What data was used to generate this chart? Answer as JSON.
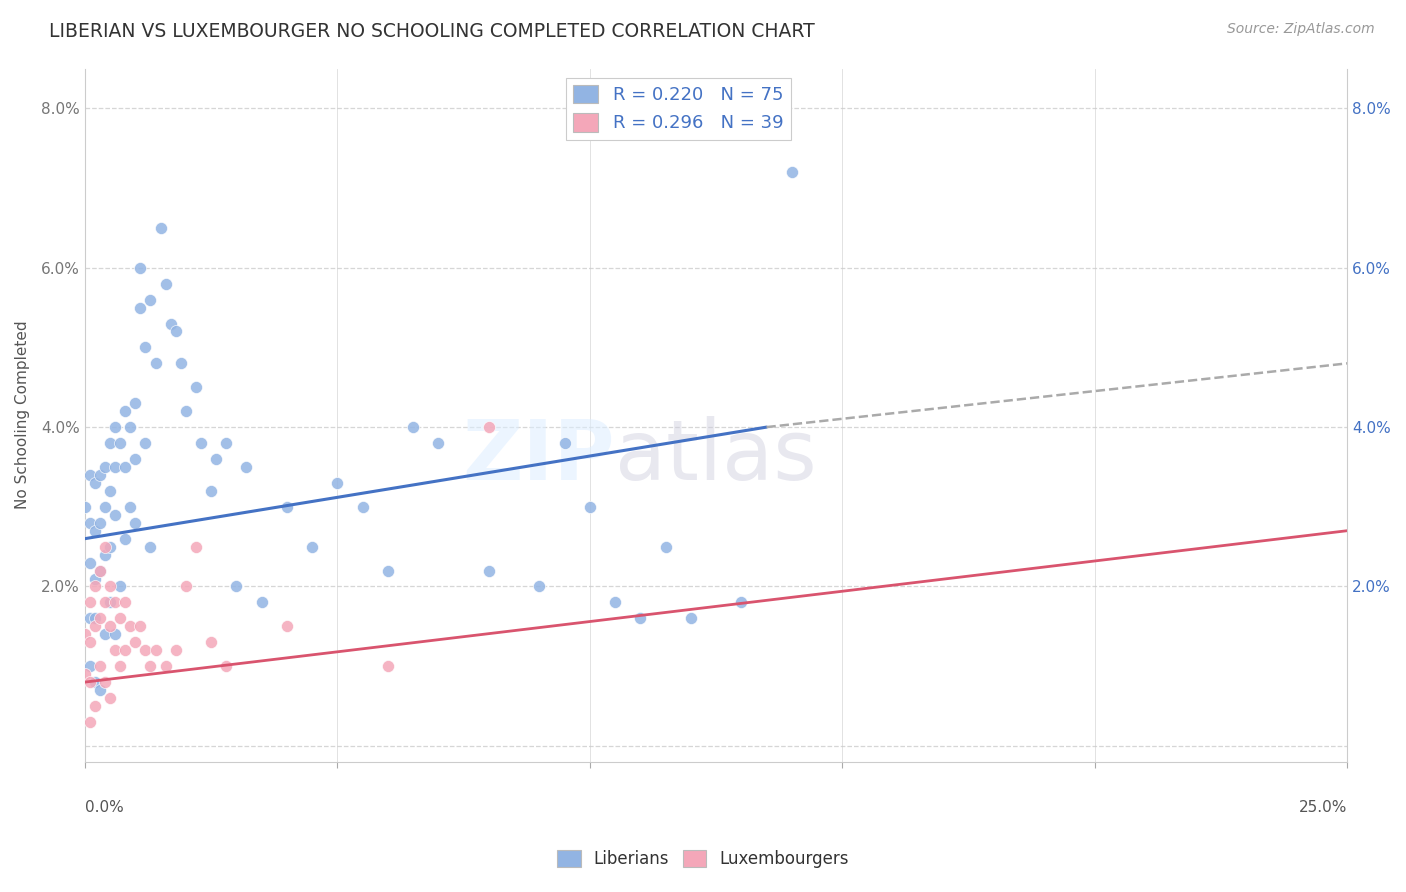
{
  "title": "LIBERIAN VS LUXEMBOURGER NO SCHOOLING COMPLETED CORRELATION CHART",
  "source": "Source: ZipAtlas.com",
  "ylabel": "No Schooling Completed",
  "xlim": [
    0.0,
    0.25
  ],
  "ylim": [
    -0.002,
    0.085
  ],
  "yticks": [
    0.0,
    0.02,
    0.04,
    0.06,
    0.08
  ],
  "ytick_labels_left": [
    "",
    "2.0%",
    "4.0%",
    "6.0%",
    "8.0%"
  ],
  "ytick_labels_right": [
    "",
    "2.0%",
    "4.0%",
    "6.0%",
    "8.0%"
  ],
  "legend_blue_r": "R = 0.220",
  "legend_blue_n": "N = 75",
  "legend_pink_r": "R = 0.296",
  "legend_pink_n": "N = 39",
  "blue_color": "#92b4e3",
  "pink_color": "#f4a7b9",
  "line_blue_color": "#4472c4",
  "line_pink_color": "#d9546e",
  "line_gray_color": "#aaaaaa",
  "blue_line_x": [
    0.0,
    0.135
  ],
  "blue_line_y": [
    0.026,
    0.04
  ],
  "gray_line_x": [
    0.135,
    0.25
  ],
  "gray_line_y": [
    0.04,
    0.048
  ],
  "pink_line_x": [
    0.0,
    0.25
  ],
  "pink_line_y": [
    0.008,
    0.027
  ],
  "lib_x": [
    0.0,
    0.001,
    0.001,
    0.001,
    0.001,
    0.001,
    0.002,
    0.002,
    0.002,
    0.002,
    0.002,
    0.003,
    0.003,
    0.003,
    0.003,
    0.004,
    0.004,
    0.004,
    0.004,
    0.005,
    0.005,
    0.005,
    0.005,
    0.006,
    0.006,
    0.006,
    0.006,
    0.007,
    0.007,
    0.008,
    0.008,
    0.008,
    0.009,
    0.009,
    0.01,
    0.01,
    0.01,
    0.011,
    0.011,
    0.012,
    0.012,
    0.013,
    0.013,
    0.014,
    0.015,
    0.016,
    0.017,
    0.018,
    0.019,
    0.02,
    0.022,
    0.023,
    0.025,
    0.026,
    0.028,
    0.03,
    0.032,
    0.035,
    0.04,
    0.045,
    0.05,
    0.055,
    0.06,
    0.065,
    0.07,
    0.08,
    0.09,
    0.095,
    0.1,
    0.105,
    0.11,
    0.115,
    0.12,
    0.13,
    0.14
  ],
  "lib_y": [
    0.03,
    0.034,
    0.028,
    0.023,
    0.016,
    0.01,
    0.033,
    0.027,
    0.021,
    0.016,
    0.008,
    0.034,
    0.028,
    0.022,
    0.007,
    0.035,
    0.03,
    0.024,
    0.014,
    0.038,
    0.032,
    0.025,
    0.018,
    0.04,
    0.035,
    0.029,
    0.014,
    0.038,
    0.02,
    0.042,
    0.035,
    0.026,
    0.04,
    0.03,
    0.043,
    0.036,
    0.028,
    0.06,
    0.055,
    0.05,
    0.038,
    0.056,
    0.025,
    0.048,
    0.065,
    0.058,
    0.053,
    0.052,
    0.048,
    0.042,
    0.045,
    0.038,
    0.032,
    0.036,
    0.038,
    0.02,
    0.035,
    0.018,
    0.03,
    0.025,
    0.033,
    0.03,
    0.022,
    0.04,
    0.038,
    0.022,
    0.02,
    0.038,
    0.03,
    0.018,
    0.016,
    0.025,
    0.016,
    0.018,
    0.072
  ],
  "lux_x": [
    0.0,
    0.0,
    0.001,
    0.001,
    0.001,
    0.001,
    0.002,
    0.002,
    0.002,
    0.003,
    0.003,
    0.003,
    0.004,
    0.004,
    0.004,
    0.005,
    0.005,
    0.005,
    0.006,
    0.006,
    0.007,
    0.007,
    0.008,
    0.008,
    0.009,
    0.01,
    0.011,
    0.012,
    0.013,
    0.014,
    0.016,
    0.018,
    0.02,
    0.022,
    0.025,
    0.028,
    0.04,
    0.06,
    0.08
  ],
  "lux_y": [
    0.014,
    0.009,
    0.018,
    0.013,
    0.008,
    0.003,
    0.02,
    0.015,
    0.005,
    0.022,
    0.016,
    0.01,
    0.025,
    0.018,
    0.008,
    0.02,
    0.015,
    0.006,
    0.018,
    0.012,
    0.016,
    0.01,
    0.018,
    0.012,
    0.015,
    0.013,
    0.015,
    0.012,
    0.01,
    0.012,
    0.01,
    0.012,
    0.02,
    0.025,
    0.013,
    0.01,
    0.015,
    0.01,
    0.04
  ]
}
